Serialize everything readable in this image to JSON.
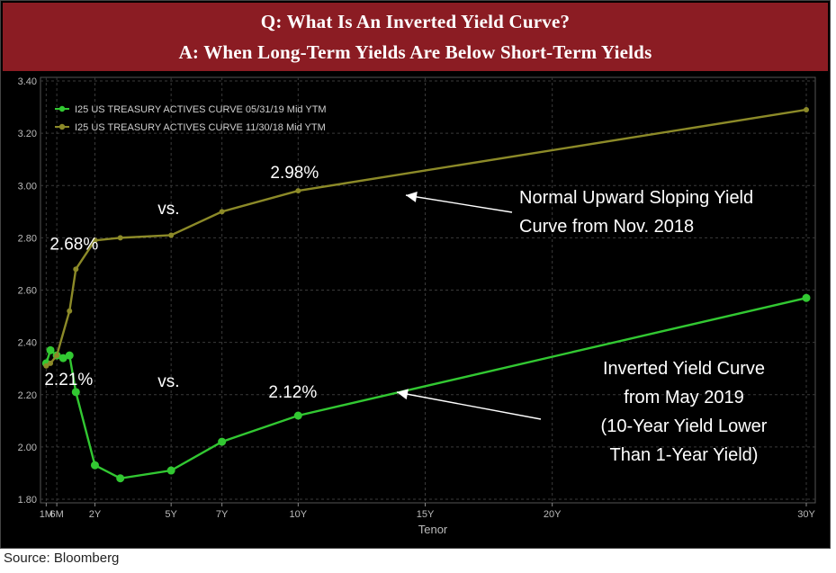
{
  "header": {
    "title_line1": "Q: What Is An Inverted Yield Curve?",
    "title_line2": "A: When Long-Term Yields Are Below Short-Term Yields"
  },
  "source": "Source: Bloomberg",
  "colors": {
    "background": "#000000",
    "header_bg": "#8b1c23",
    "series_may2019": "#32c832",
    "series_nov2018": "#8c8a28",
    "annotation_text": "#ffffff"
  },
  "chart_data": {
    "type": "line",
    "xlabel": "Tenor",
    "ylabel": "",
    "ylim": [
      1.8,
      3.4
    ],
    "yticks": [
      "1.80",
      "2.00",
      "2.20",
      "2.40",
      "2.60",
      "2.80",
      "3.00",
      "3.20",
      "3.40"
    ],
    "xticks": [
      {
        "label": "1M",
        "x": 0.083
      },
      {
        "label": "6M",
        "x": 0.5
      },
      {
        "label": "2Y",
        "x": 2
      },
      {
        "label": "5Y",
        "x": 5
      },
      {
        "label": "7Y",
        "x": 7
      },
      {
        "label": "10Y",
        "x": 10
      },
      {
        "label": "15Y",
        "x": 15
      },
      {
        "label": "20Y",
        "x": 20
      },
      {
        "label": "30Y",
        "x": 30
      }
    ],
    "grid": true,
    "legend_position": "top-left",
    "series": [
      {
        "name": "I25 US TREASURY ACTIVES CURVE 05/31/19 Mid YTM",
        "color": "#32c832",
        "x": [
          0.083,
          0.25,
          0.5,
          0.75,
          1,
          1.25,
          2,
          3,
          5,
          7,
          10,
          30
        ],
        "y": [
          2.32,
          2.37,
          2.35,
          2.34,
          2.35,
          2.21,
          1.93,
          1.88,
          1.91,
          2.02,
          2.12,
          2.57
        ]
      },
      {
        "name": "I25 US TREASURY ACTIVES CURVE 11/30/18 Mid YTM",
        "color": "#8c8a28",
        "x": [
          0.083,
          0.25,
          0.5,
          1,
          1.25,
          2,
          3,
          5,
          7,
          10,
          30
        ],
        "y": [
          2.31,
          2.32,
          2.35,
          2.52,
          2.68,
          2.79,
          2.8,
          2.81,
          2.9,
          2.98,
          3.29
        ]
      }
    ],
    "annotations": [
      {
        "id": "label_268",
        "text": "2.68%",
        "x": 1.25,
        "y": 2.68
      },
      {
        "id": "label_298",
        "text": "2.98%",
        "x": 10,
        "y": 2.98
      },
      {
        "id": "label_221",
        "text": "2.21%",
        "x": 1.25,
        "y": 2.21
      },
      {
        "id": "label_212",
        "text": "2.12%",
        "x": 10,
        "y": 2.12
      },
      {
        "id": "vs_top",
        "text": "vs."
      },
      {
        "id": "vs_bottom",
        "text": "vs."
      }
    ],
    "callouts": [
      {
        "id": "normal",
        "lines": [
          "Normal Upward Sloping Yield",
          "Curve from Nov. 2018"
        ]
      },
      {
        "id": "inverted",
        "lines": [
          "Inverted Yield Curve",
          "from May 2019",
          "(10-Year Yield Lower",
          "Than 1-Year Yield)"
        ]
      }
    ]
  }
}
